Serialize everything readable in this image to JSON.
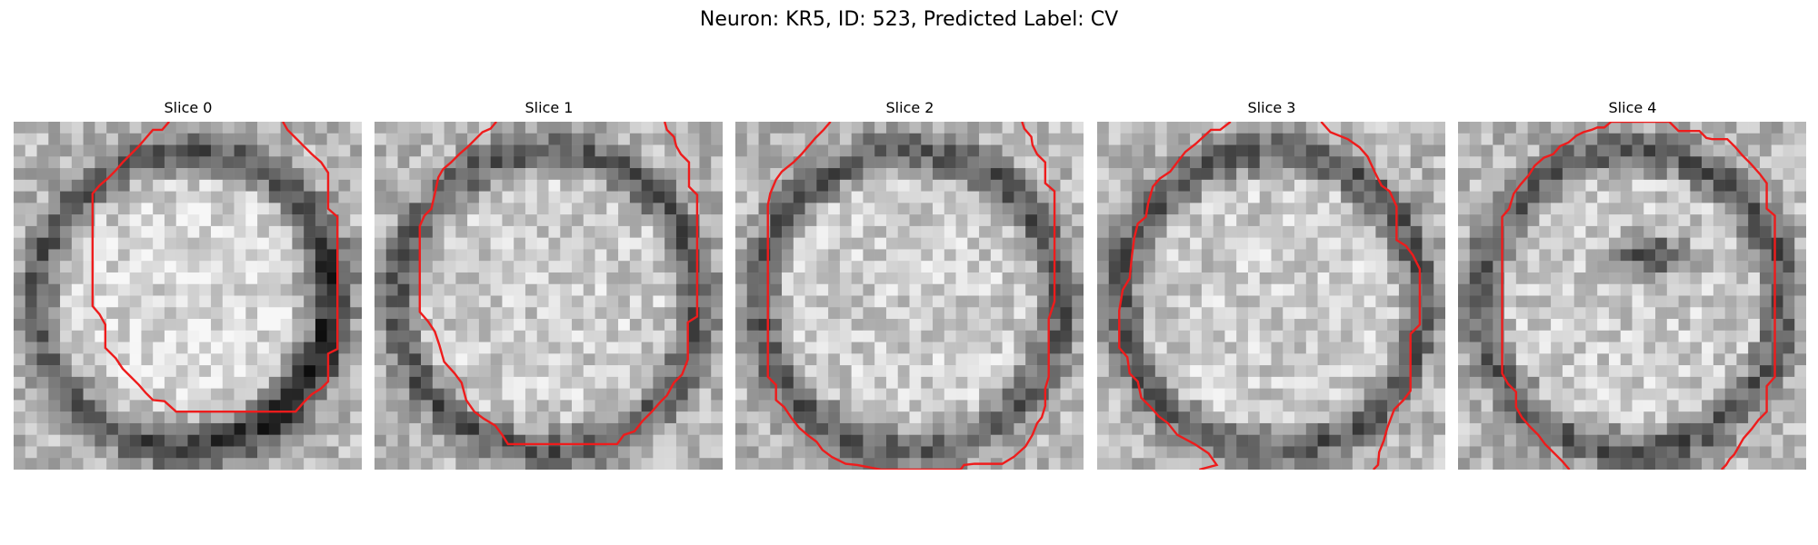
{
  "figure": {
    "title": "Neuron: KR5, ID: 523, Predicted Label: CV"
  },
  "panels": [
    {
      "title": "Slice 0",
      "seed": 11,
      "style": "ring_bottom_right"
    },
    {
      "title": "Slice 1",
      "seed": 23,
      "style": "ring"
    },
    {
      "title": "Slice 2",
      "seed": 37,
      "style": "ring"
    },
    {
      "title": "Slice 3",
      "seed": 51,
      "style": "ring"
    },
    {
      "title": "Slice 4",
      "seed": 67,
      "style": "ring_dark_spot"
    }
  ],
  "colors": {
    "contour": "#ee1c1c",
    "colormap": "gray"
  }
}
